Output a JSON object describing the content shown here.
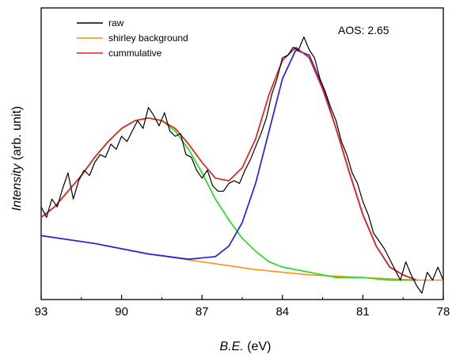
{
  "chart_data": {
    "type": "line",
    "xlabel": "B.E. (eV)",
    "xlabel_italic": "B.E.",
    "xlabel_unit": " (eV)",
    "ylabel": "Intensity (arb. unit)",
    "ylabel_italic": "Intensity",
    "ylabel_unit": " (arb. unit)",
    "xlim": [
      93,
      78
    ],
    "x_reversed": true,
    "ylim": [
      0,
      1.0
    ],
    "x_ticks": [
      "93",
      "90",
      "87",
      "84",
      "81",
      "78"
    ],
    "y_ticks_shown": false,
    "grid": false,
    "legend_position": "top-left",
    "annotation": "AOS: 2.65",
    "series": [
      {
        "name": "raw",
        "color": "#000000",
        "x": [
          93.0,
          92.8,
          92.6,
          92.4,
          92.2,
          92.0,
          91.8,
          91.6,
          91.4,
          91.2,
          91.0,
          90.8,
          90.6,
          90.4,
          90.2,
          90.0,
          89.8,
          89.6,
          89.4,
          89.2,
          89.0,
          88.8,
          88.6,
          88.4,
          88.2,
          88.0,
          87.8,
          87.6,
          87.4,
          87.2,
          87.0,
          86.8,
          86.6,
          86.4,
          86.2,
          86.0,
          85.8,
          85.6,
          85.4,
          85.2,
          85.0,
          84.8,
          84.6,
          84.4,
          84.2,
          84.0,
          83.8,
          83.6,
          83.4,
          83.2,
          83.0,
          82.8,
          82.6,
          82.4,
          82.2,
          82.0,
          81.8,
          81.6,
          81.4,
          81.2,
          81.0,
          80.8,
          80.6,
          80.4,
          80.2,
          80.0,
          79.8,
          79.6,
          79.4,
          79.2,
          79.0,
          78.8,
          78.6,
          78.4,
          78.2,
          78.0
        ],
        "y": [
          0.33,
          0.29,
          0.36,
          0.33,
          0.4,
          0.46,
          0.36,
          0.43,
          0.47,
          0.45,
          0.5,
          0.53,
          0.52,
          0.57,
          0.55,
          0.6,
          0.58,
          0.62,
          0.66,
          0.63,
          0.71,
          0.68,
          0.64,
          0.69,
          0.62,
          0.6,
          0.61,
          0.53,
          0.52,
          0.47,
          0.44,
          0.47,
          0.41,
          0.39,
          0.39,
          0.42,
          0.43,
          0.42,
          0.47,
          0.51,
          0.56,
          0.61,
          0.67,
          0.76,
          0.82,
          0.9,
          0.91,
          0.94,
          0.93,
          0.98,
          0.93,
          0.9,
          0.82,
          0.77,
          0.71,
          0.66,
          0.58,
          0.53,
          0.46,
          0.42,
          0.35,
          0.3,
          0.23,
          0.2,
          0.17,
          0.13,
          0.09,
          0.05,
          0.12,
          0.07,
          0.03,
          0.0,
          0.08,
          0.05,
          0.1,
          0.05
        ]
      },
      {
        "name": "shirley background",
        "color": "#ff8c00",
        "x": [
          93.0,
          91.0,
          89.0,
          87.0,
          85.0,
          83.0,
          81.0,
          79.0,
          78.0
        ],
        "y": [
          0.22,
          0.19,
          0.15,
          0.12,
          0.09,
          0.07,
          0.06,
          0.05,
          0.05
        ]
      },
      {
        "name": "cummulative",
        "color": "#e8201a",
        "x": [
          93.0,
          92.5,
          92.0,
          91.5,
          91.0,
          90.5,
          90.0,
          89.5,
          89.0,
          88.5,
          88.0,
          87.5,
          87.0,
          86.5,
          86.0,
          85.5,
          85.0,
          84.5,
          84.0,
          83.5,
          83.0,
          82.5,
          82.0,
          81.5,
          81.0,
          80.5,
          80.0,
          79.5,
          79.0
        ],
        "y": [
          0.29,
          0.33,
          0.39,
          0.45,
          0.52,
          0.58,
          0.63,
          0.66,
          0.67,
          0.66,
          0.63,
          0.57,
          0.5,
          0.44,
          0.43,
          0.48,
          0.59,
          0.76,
          0.89,
          0.94,
          0.9,
          0.78,
          0.63,
          0.46,
          0.3,
          0.18,
          0.1,
          0.07,
          0.05
        ]
      },
      {
        "name": "",
        "color": "#22dd22",
        "x": [
          93.0,
          92.5,
          92.0,
          91.5,
          91.0,
          90.5,
          90.0,
          89.5,
          89.0,
          88.5,
          88.0,
          87.5,
          87.0,
          86.5,
          86.0,
          85.5,
          85.0,
          84.5,
          84.0,
          83.0,
          82.0,
          81.0,
          80.0,
          79.0
        ],
        "y": [
          0.29,
          0.33,
          0.39,
          0.45,
          0.52,
          0.58,
          0.63,
          0.66,
          0.67,
          0.66,
          0.62,
          0.55,
          0.46,
          0.36,
          0.28,
          0.21,
          0.16,
          0.12,
          0.1,
          0.08,
          0.06,
          0.06,
          0.05,
          0.05
        ]
      },
      {
        "name": "",
        "color": "#2222dd",
        "x": [
          93.0,
          91.0,
          89.0,
          87.5,
          86.5,
          86.0,
          85.5,
          85.0,
          84.5,
          84.0,
          83.5,
          83.0,
          82.5,
          82.0,
          81.5,
          81.0,
          80.5,
          80.0,
          79.5,
          79.0
        ],
        "y": [
          0.22,
          0.19,
          0.15,
          0.13,
          0.14,
          0.18,
          0.27,
          0.42,
          0.62,
          0.82,
          0.93,
          0.91,
          0.79,
          0.63,
          0.46,
          0.3,
          0.18,
          0.1,
          0.07,
          0.05
        ]
      }
    ]
  }
}
